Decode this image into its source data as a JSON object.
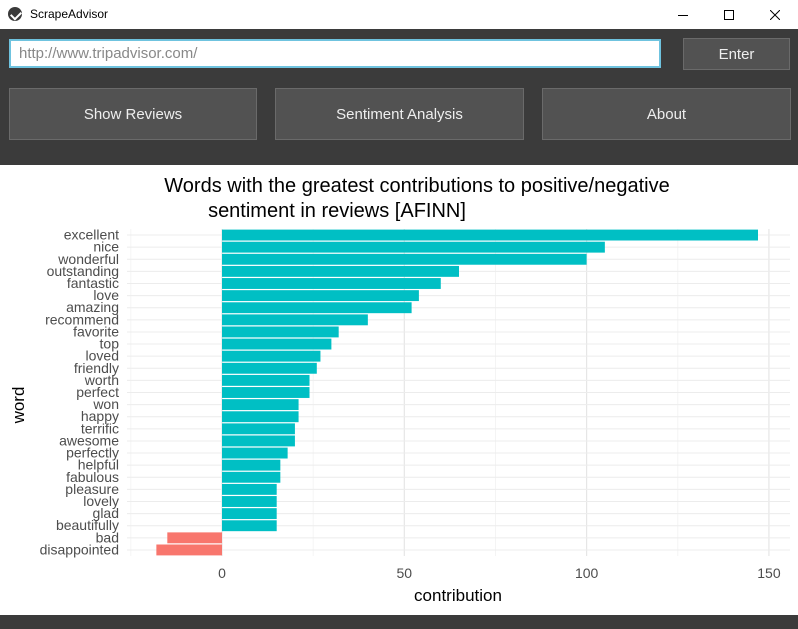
{
  "window": {
    "title": "ScrapeAdvisor"
  },
  "url_bar": {
    "placeholder": "http://www.tripadvisor.com/"
  },
  "buttons": {
    "enter": "Enter",
    "show_reviews": "Show Reviews",
    "sentiment_analysis": "Sentiment Analysis",
    "about": "About"
  },
  "colors": {
    "positive": "#00bfc4",
    "negative": "#f8766d",
    "toolbar": "#3b3b3b",
    "button": "#525252"
  },
  "icons": {
    "app": "app-logo-icon",
    "minimize": "minimize-icon",
    "maximize": "maximize-icon",
    "close": "close-icon"
  },
  "chart_data": {
    "type": "bar",
    "orientation": "horizontal",
    "title": "Words with the greatest contributions to positive/negative sentiment in reviews [AFINN]",
    "title_lines": [
      "Words with the greatest contributions to positive/negative",
      "sentiment in reviews [AFINN]"
    ],
    "xlabel": "contribution",
    "ylabel": "word",
    "xlim": [
      -25,
      155
    ],
    "xticks": [
      0,
      50,
      100,
      150
    ],
    "grid": true,
    "categories": [
      "excellent",
      "nice",
      "wonderful",
      "outstanding",
      "fantastic",
      "love",
      "amazing",
      "recommend",
      "favorite",
      "top",
      "loved",
      "friendly",
      "worth",
      "perfect",
      "won",
      "happy",
      "terrific",
      "awesome",
      "perfectly",
      "helpful",
      "fabulous",
      "pleasure",
      "lovely",
      "glad",
      "beautifully",
      "bad",
      "disappointed"
    ],
    "values": [
      147,
      105,
      100,
      65,
      60,
      54,
      52,
      40,
      32,
      30,
      27,
      26,
      24,
      24,
      21,
      21,
      20,
      20,
      18,
      16,
      16,
      15,
      15,
      15,
      15,
      -15,
      -18
    ]
  }
}
